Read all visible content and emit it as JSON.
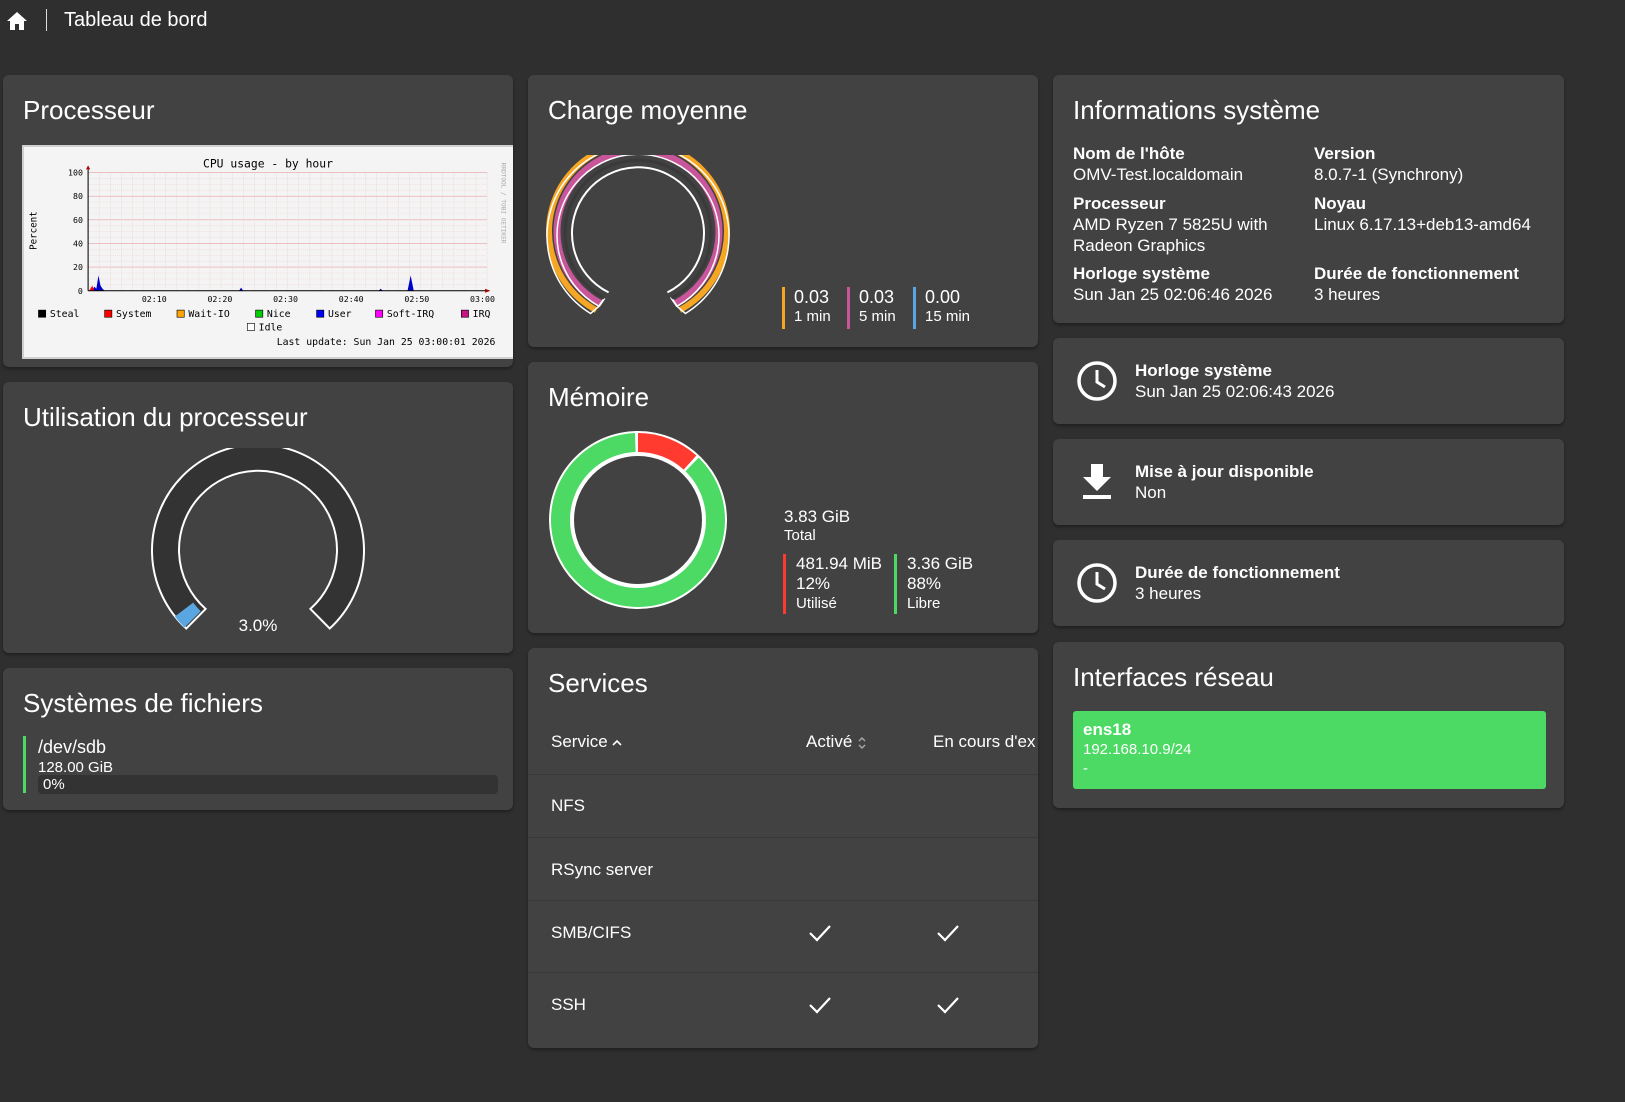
{
  "header": {
    "title": "Tableau de bord",
    "home_icon": "home-icon"
  },
  "cpu_card": {
    "title": "Processeur",
    "graph": {
      "title": "CPU usage - by hour",
      "ylabel": "Percent",
      "yticks": [
        "100",
        "80",
        "60",
        "40",
        "20",
        "0"
      ],
      "xticks": [
        "02:10",
        "02:20",
        "02:30",
        "02:40",
        "02:50",
        "03:00"
      ],
      "side_text": "RRDTOOL / TOBI OETIKER",
      "legend": [
        {
          "label": "Steal",
          "color": "#000000"
        },
        {
          "label": "System",
          "color": "#ff0000"
        },
        {
          "label": "Wait-IO",
          "color": "#ffa500"
        },
        {
          "label": "Nice",
          "color": "#00cc00"
        },
        {
          "label": "User",
          "color": "#0000ff"
        },
        {
          "label": "Soft-IRQ",
          "color": "#ff00ff"
        },
        {
          "label": "IRQ",
          "color": "#c71585"
        },
        {
          "label": "Idle",
          "color": "#ffffff"
        }
      ],
      "last_update": "Last update: Sun Jan 25 03:00:01 2026"
    }
  },
  "load_card": {
    "title": "Charge moyenne",
    "items": [
      {
        "value": "0.03",
        "label": "1 min",
        "color": "#f5a623"
      },
      {
        "value": "0.03",
        "label": "5 min",
        "color": "#c9559b"
      },
      {
        "value": "0.00",
        "label": "15 min",
        "color": "#5aa6e0"
      }
    ]
  },
  "sysinfo_card": {
    "title": "Informations système",
    "hostname_label": "Nom de l'hôte",
    "hostname": "OMV-Test.localdomain",
    "version_label": "Version",
    "version": "8.0.7-1 (Synchrony)",
    "cpu_label": "Processeur",
    "cpu_line1": "AMD Ryzen 7 5825U with",
    "cpu_line2": "Radeon Graphics",
    "kernel_label": "Noyau",
    "kernel": "Linux 6.17.13+deb13-amd64",
    "clock_label": "Horloge système",
    "clock": "Sun Jan 25 02:06:46 2026",
    "uptime_label": "Durée de fonctionnement",
    "uptime": "3 heures"
  },
  "tiles": {
    "clock": {
      "label": "Horloge système",
      "value": "Sun Jan 25 02:06:43 2026",
      "icon": "clock-icon"
    },
    "update": {
      "label": "Mise à jour disponible",
      "value": "Non",
      "icon": "download-icon"
    },
    "uptime": {
      "label": "Durée de fonctionnement",
      "value": "3 heures",
      "icon": "clock-icon"
    }
  },
  "cpu_usage_card": {
    "title": "Utilisation du processeur",
    "value": "3.0%",
    "percent": 3.0,
    "gauge_color": "#5aa6e0"
  },
  "memory_card": {
    "title": "Mémoire",
    "total": "3.83 GiB",
    "total_label": "Total",
    "used": "481.94 MiB",
    "used_pct": "12%",
    "used_label": "Utilisé",
    "used_fraction": 0.12,
    "free": "3.36 GiB",
    "free_pct": "88%",
    "free_label": "Libre",
    "used_color": "#ff3b30",
    "free_color": "#4cd964"
  },
  "fs_card": {
    "title": "Systèmes de fichiers",
    "device": "/dev/sdb",
    "size": "128.00 GiB",
    "usage": "0%",
    "bar_color": "#4cd964"
  },
  "services_card": {
    "title": "Services",
    "columns": [
      "Service",
      "Activé",
      "En cours d'ex"
    ],
    "rows": [
      {
        "name": "NFS",
        "enabled": false,
        "running": false
      },
      {
        "name": "RSync server",
        "enabled": false,
        "running": false
      },
      {
        "name": "SMB/CIFS",
        "enabled": true,
        "running": true
      },
      {
        "name": "SSH",
        "enabled": true,
        "running": true
      }
    ]
  },
  "network_card": {
    "title": "Interfaces réseau",
    "iface": "ens18",
    "address": "192.168.10.9/24",
    "extra": "-",
    "color": "#4cd964"
  }
}
